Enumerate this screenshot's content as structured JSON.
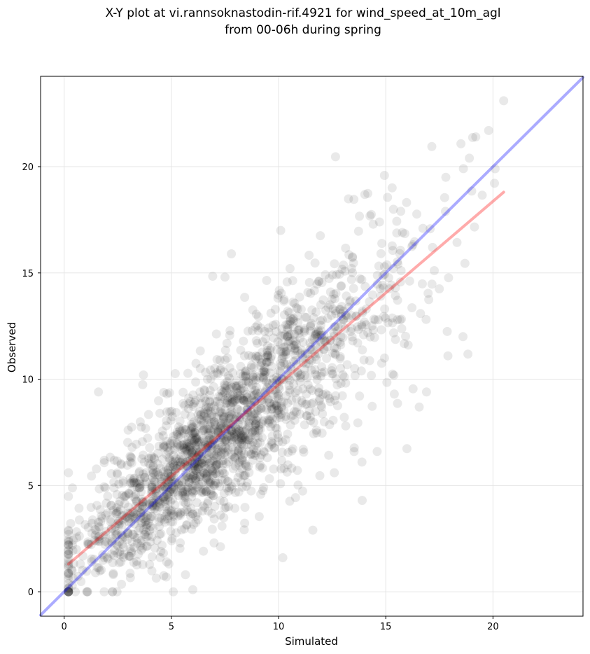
{
  "chart_data": {
    "type": "scatter",
    "title_line1": "X-Y plot at vi.rannsoknastodin-rif.4921 for wind_speed_at_10m_agl",
    "title_line2": "from 00-06h during spring",
    "xlabel": "Simulated",
    "ylabel": "Observed",
    "xlim": [
      -1.1,
      24.2
    ],
    "ylim": [
      -1.15,
      24.25
    ],
    "xticks": [
      0,
      5,
      10,
      15,
      20
    ],
    "yticks": [
      0,
      5,
      10,
      15,
      20
    ],
    "grid": true,
    "colors": {
      "points": "#000000",
      "identity_line": "#0000ff",
      "fit_line": "#ff0000",
      "grid": "#e6e6e6"
    },
    "identity_line": {
      "x": [
        -1.1,
        24.2
      ],
      "y": [
        -1.1,
        24.2
      ]
    },
    "fit_line": {
      "x": [
        0.2,
        20.5
      ],
      "y": [
        1.3,
        18.8
      ]
    },
    "point_count_estimate": 2000,
    "cluster_summary": "dense cloud along diagonal, roughly x from 0.2 to 20.5 and y from 0 to 23",
    "outliers": [
      {
        "x": 0.2,
        "y": 5.6
      },
      {
        "x": 1.6,
        "y": 9.4
      },
      {
        "x": 3.7,
        "y": 10.2
      },
      {
        "x": 6.0,
        "y": 0.1
      },
      {
        "x": 10.2,
        "y": 1.6
      },
      {
        "x": 13.9,
        "y": 4.3
      },
      {
        "x": 11.6,
        "y": 2.9
      },
      {
        "x": 7.5,
        "y": 14.8
      },
      {
        "x": 7.8,
        "y": 15.9
      },
      {
        "x": 10.1,
        "y": 17.0
      },
      {
        "x": 15.7,
        "y": 17.9
      },
      {
        "x": 16.9,
        "y": 9.4
      },
      {
        "x": 18.6,
        "y": 12.0
      },
      {
        "x": 17.9,
        "y": 11.1
      },
      {
        "x": 17.8,
        "y": 19.5
      },
      {
        "x": 18.9,
        "y": 20.4
      },
      {
        "x": 19.2,
        "y": 21.4
      },
      {
        "x": 19.8,
        "y": 21.7
      },
      {
        "x": 20.5,
        "y": 23.1
      },
      {
        "x": 20.1,
        "y": 19.9
      },
      {
        "x": 14.6,
        "y": 6.6
      },
      {
        "x": 15.4,
        "y": 9.3
      },
      {
        "x": 12.6,
        "y": 5.6
      }
    ]
  }
}
